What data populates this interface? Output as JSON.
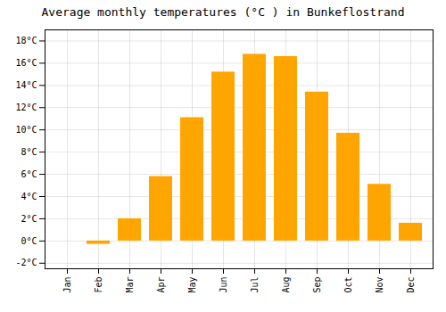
{
  "chart_data": {
    "type": "bar",
    "title": "Average monthly temperatures (°C ) in Bunkeflostrand",
    "categories": [
      "Jan",
      "Feb",
      "Mar",
      "Apr",
      "May",
      "Jun",
      "Jul",
      "Aug",
      "Sep",
      "Oct",
      "Nov",
      "Dec"
    ],
    "values": [
      0.0,
      -0.3,
      2.0,
      5.8,
      11.1,
      15.2,
      16.8,
      16.6,
      13.4,
      9.7,
      5.1,
      1.6
    ],
    "color": "#FFA500",
    "ylim": [
      -2.5,
      19
    ],
    "yticks": [
      {
        "value": -2,
        "label": "-2°C"
      },
      {
        "value": 0,
        "label": "0°C"
      },
      {
        "value": 2,
        "label": "2°C"
      },
      {
        "value": 4,
        "label": "4°C"
      },
      {
        "value": 6,
        "label": "6°C"
      },
      {
        "value": 8,
        "label": "8°C"
      },
      {
        "value": 10,
        "label": "10°C"
      },
      {
        "value": 12,
        "label": "12°C"
      },
      {
        "value": 14,
        "label": "14°C"
      },
      {
        "value": 16,
        "label": "16°C"
      },
      {
        "value": 18,
        "label": "18°C"
      }
    ],
    "grid": true
  }
}
